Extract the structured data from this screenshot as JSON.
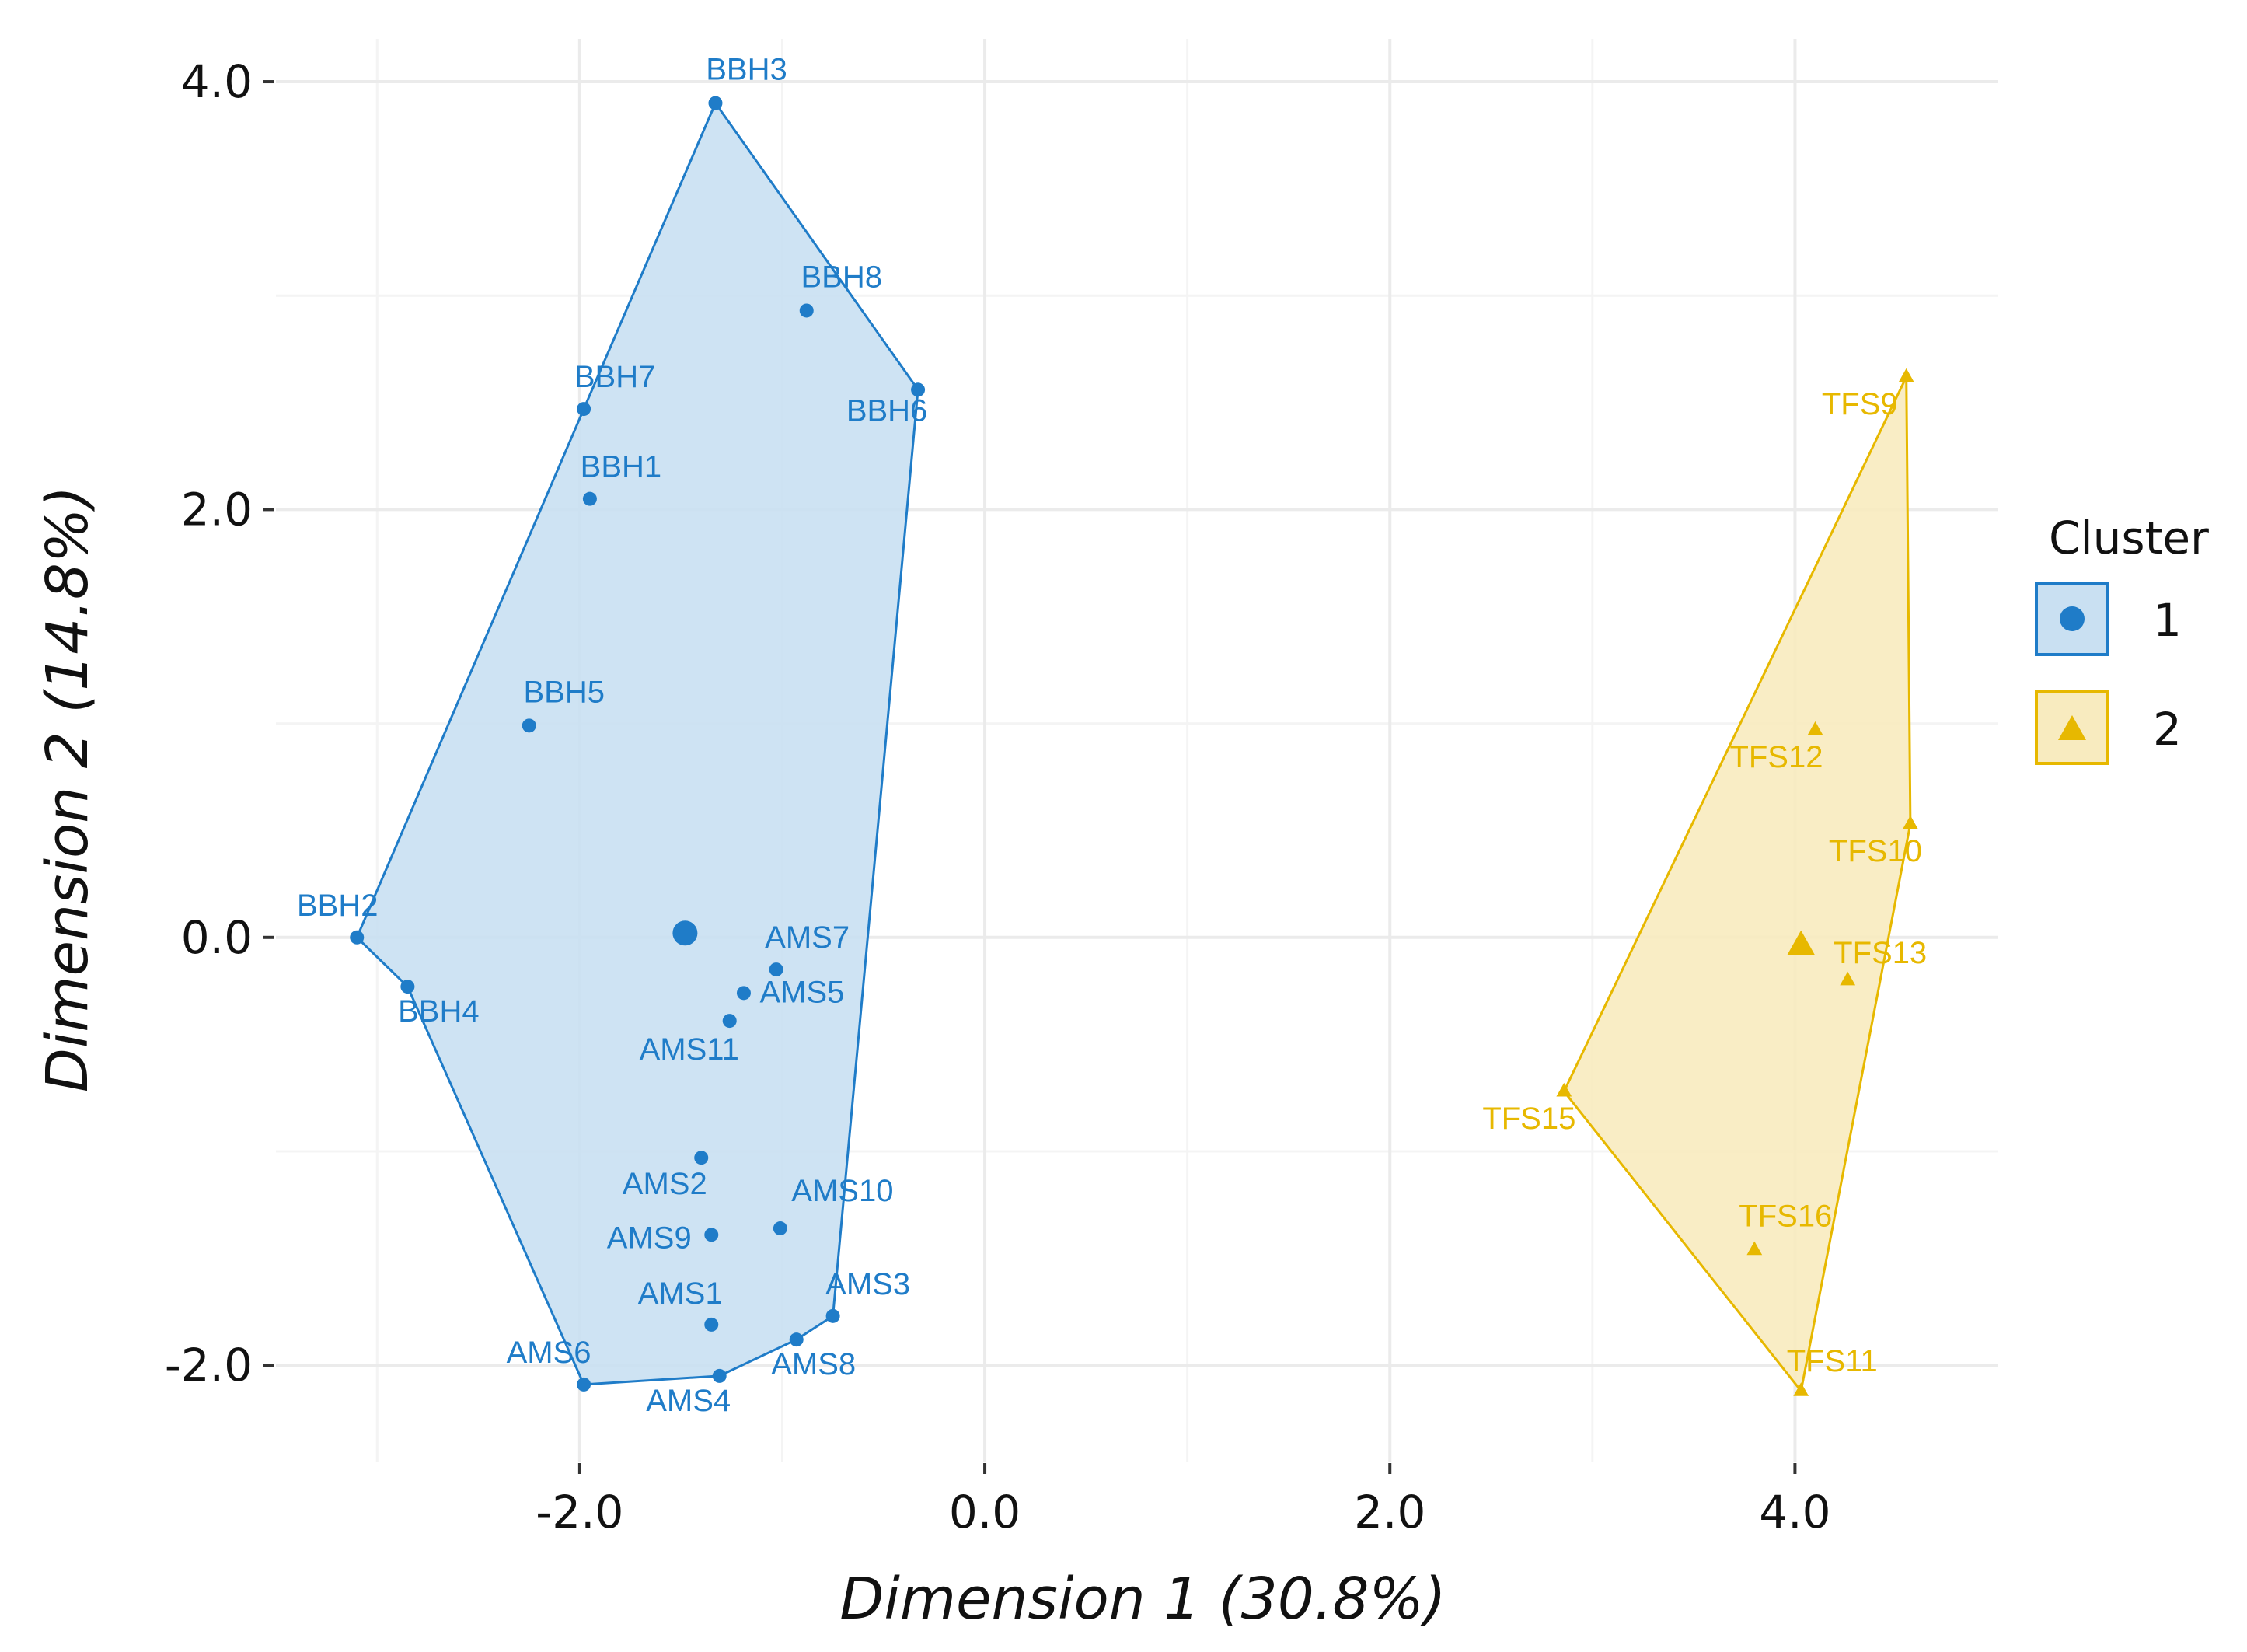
{
  "chart_data": {
    "type": "scatter",
    "subtype": "cluster-plot-with-convex-hulls",
    "title": "",
    "xlabel": "Dimension 1 (30.8%)",
    "ylabel": "Dimension 2 (14.8%)",
    "xlim": [
      -3.5,
      5.0
    ],
    "ylim": [
      -2.45,
      4.2
    ],
    "xticks": [
      -2.0,
      0.0,
      2.0,
      4.0
    ],
    "xtick_labels": [
      "-2.0",
      "0.0",
      "2.0",
      "4.0"
    ],
    "yticks": [
      -2.0,
      0.0,
      2.0,
      4.0
    ],
    "ytick_labels": [
      "-2.0",
      "0.0",
      "2.0",
      "4.0"
    ],
    "grid": true,
    "legend": {
      "title": "Cluster",
      "position": "right",
      "entries": [
        "1",
        "2"
      ]
    },
    "series": [
      {
        "name": "1",
        "color": "#1f7cc8",
        "fill": "#c9e0f2",
        "marker": "circle",
        "centroid": {
          "x": -1.48,
          "y": 0.02
        },
        "hull": [
          "BBH3",
          "BBH6",
          "AMS3",
          "AMS8",
          "AMS4",
          "AMS6",
          "BBH4",
          "BBH2",
          "BBH7"
        ],
        "points": [
          {
            "label": "BBH3",
            "x": -1.33,
            "y": 3.9
          },
          {
            "label": "BBH8",
            "x": -0.88,
            "y": 2.93
          },
          {
            "label": "BBH6",
            "x": -0.33,
            "y": 2.56
          },
          {
            "label": "BBH7",
            "x": -1.98,
            "y": 2.47
          },
          {
            "label": "BBH1",
            "x": -1.95,
            "y": 2.05
          },
          {
            "label": "BBH5",
            "x": -2.25,
            "y": 0.99
          },
          {
            "label": "BBH2",
            "x": -3.1,
            "y": 0.0
          },
          {
            "label": "BBH4",
            "x": -2.85,
            "y": -0.23
          },
          {
            "label": "AMS7",
            "x": -1.03,
            "y": -0.15
          },
          {
            "label": "AMS5",
            "x": -1.19,
            "y": -0.26
          },
          {
            "label": "AMS11",
            "x": -1.26,
            "y": -0.39
          },
          {
            "label": "AMS2",
            "x": -1.4,
            "y": -1.03
          },
          {
            "label": "AMS10",
            "x": -1.01,
            "y": -1.36
          },
          {
            "label": "AMS9",
            "x": -1.35,
            "y": -1.39
          },
          {
            "label": "AMS1",
            "x": -1.35,
            "y": -1.81
          },
          {
            "label": "AMS3",
            "x": -0.75,
            "y": -1.77
          },
          {
            "label": "AMS8",
            "x": -0.93,
            "y": -1.88
          },
          {
            "label": "AMS6",
            "x": -1.98,
            "y": -2.09
          },
          {
            "label": "AMS4",
            "x": -1.31,
            "y": -2.05
          }
        ]
      },
      {
        "name": "2",
        "color": "#e7b800",
        "fill": "#f8ebbf",
        "marker": "triangle",
        "centroid": {
          "x": 4.03,
          "y": -0.04
        },
        "hull": [
          "TFS9",
          "TFS10",
          "TFS11",
          "TFS15"
        ],
        "points": [
          {
            "label": "TFS9",
            "x": 4.55,
            "y": 2.62
          },
          {
            "label": "TFS12",
            "x": 4.1,
            "y": 0.97
          },
          {
            "label": "TFS10",
            "x": 4.57,
            "y": 0.53
          },
          {
            "label": "TFS13",
            "x": 4.26,
            "y": -0.2
          },
          {
            "label": "TFS15",
            "x": 2.86,
            "y": -0.72
          },
          {
            "label": "TFS16",
            "x": 3.8,
            "y": -1.46
          },
          {
            "label": "TFS11",
            "x": 4.03,
            "y": -2.12
          }
        ]
      }
    ]
  }
}
